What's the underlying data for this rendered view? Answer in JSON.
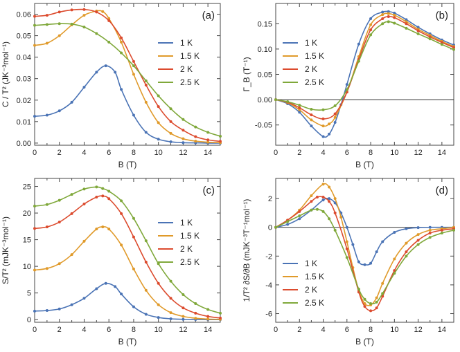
{
  "colors": {
    "1 K": "#4a73b5",
    "1.5 K": "#e09a2a",
    "2 K": "#dc4b2e",
    "2.5 K": "#7fa83a"
  },
  "chart_data": [
    {
      "type": "line",
      "id": "a",
      "panel_label": "(a)",
      "xlabel": "B (T)",
      "ylabel": "C / T² (JK⁻³mol⁻¹)",
      "xlim": [
        0,
        15
      ],
      "ylim": [
        -0.001,
        0.065
      ],
      "xticks": [
        0,
        2,
        4,
        6,
        8,
        10,
        12,
        14
      ],
      "yticks": [
        0.0,
        0.01,
        0.02,
        0.03,
        0.04,
        0.05,
        0.06
      ],
      "ytick_labels": [
        "0.00",
        "0.01",
        "0.02",
        "0.03",
        "0.04",
        "0.05",
        "0.06"
      ],
      "zero_line": false,
      "legend": [
        "1 K",
        "1.5 K",
        "2 K",
        "2.5 K"
      ],
      "series": [
        {
          "name": "1 K",
          "x": [
            0,
            1,
            2,
            3,
            4,
            5,
            5.75,
            6.5,
            7,
            8,
            9,
            10,
            11,
            12,
            13,
            14,
            15
          ],
          "values": [
            0.0125,
            0.013,
            0.015,
            0.019,
            0.026,
            0.033,
            0.036,
            0.033,
            0.025,
            0.013,
            0.005,
            0.0018,
            0.0006,
            0.0002,
            0.0001,
            0,
            0
          ]
        },
        {
          "name": "1.5 K",
          "x": [
            0,
            1,
            2,
            3,
            4,
            5,
            5.5,
            6,
            7,
            8,
            9,
            10,
            11,
            12,
            13,
            14,
            15
          ],
          "values": [
            0.0455,
            0.0465,
            0.05,
            0.055,
            0.0595,
            0.0615,
            0.0612,
            0.058,
            0.047,
            0.032,
            0.019,
            0.0095,
            0.0045,
            0.002,
            0.0009,
            0.0004,
            0.0002
          ]
        },
        {
          "name": "2 K",
          "x": [
            0,
            1,
            2,
            3,
            4,
            5,
            6,
            7,
            8,
            9,
            10,
            11,
            12,
            13,
            14,
            15
          ],
          "values": [
            0.059,
            0.0595,
            0.061,
            0.062,
            0.0622,
            0.061,
            0.057,
            0.049,
            0.038,
            0.027,
            0.017,
            0.01,
            0.006,
            0.003,
            0.0015,
            0.0008
          ]
        },
        {
          "name": "2.5 K",
          "x": [
            0,
            1,
            2,
            3,
            4,
            5,
            6,
            7,
            8,
            9,
            10,
            11,
            12,
            13,
            14,
            15
          ],
          "values": [
            0.0548,
            0.0552,
            0.0556,
            0.0554,
            0.054,
            0.051,
            0.047,
            0.042,
            0.036,
            0.029,
            0.022,
            0.016,
            0.011,
            0.0075,
            0.005,
            0.0032
          ]
        }
      ]
    },
    {
      "type": "line",
      "id": "b",
      "panel_label": "(b)",
      "xlabel": "B (T)",
      "ylabel": "Γ_B (T⁻¹)",
      "xlim": [
        0,
        15
      ],
      "ylim": [
        -0.09,
        0.19
      ],
      "xticks": [
        0,
        2,
        4,
        6,
        8,
        10,
        12,
        14
      ],
      "yticks": [
        -0.05,
        0.0,
        0.05,
        0.1,
        0.15
      ],
      "ytick_labels": [
        "-0.05",
        "0.00",
        "0.05",
        "0.10",
        "0.15"
      ],
      "zero_line": true,
      "legend": [
        "1 K",
        "1.5 K",
        "2 K",
        "2.5 K"
      ],
      "series": [
        {
          "name": "1 K",
          "x": [
            0,
            1,
            2,
            3,
            4,
            4.5,
            5,
            5.5,
            6,
            7,
            8,
            9,
            9.5,
            10,
            11,
            12,
            13,
            14,
            15
          ],
          "values": [
            0,
            -0.008,
            -0.025,
            -0.052,
            -0.073,
            -0.068,
            -0.045,
            -0.01,
            0.03,
            0.11,
            0.16,
            0.173,
            0.174,
            0.171,
            0.158,
            0.143,
            0.13,
            0.118,
            0.108
          ]
        },
        {
          "name": "1.5 K",
          "x": [
            0,
            1,
            2,
            3,
            4,
            4.5,
            5,
            6,
            7,
            8,
            9,
            9.5,
            10,
            11,
            12,
            13,
            14,
            15
          ],
          "values": [
            0,
            -0.006,
            -0.02,
            -0.04,
            -0.052,
            -0.048,
            -0.035,
            0.015,
            0.085,
            0.148,
            0.168,
            0.17,
            0.167,
            0.154,
            0.139,
            0.127,
            0.115,
            0.105
          ]
        },
        {
          "name": "2 K",
          "x": [
            0,
            1,
            2,
            3,
            4,
            5,
            6,
            7,
            8,
            9,
            9.5,
            10,
            11,
            12,
            13,
            14,
            15
          ],
          "values": [
            0,
            -0.005,
            -0.016,
            -0.03,
            -0.038,
            -0.028,
            0.015,
            0.08,
            0.138,
            0.16,
            0.164,
            0.162,
            0.15,
            0.136,
            0.124,
            0.113,
            0.103
          ]
        },
        {
          "name": "2.5 K",
          "x": [
            0,
            1,
            2,
            3,
            4,
            5,
            6,
            7,
            8,
            9,
            9.5,
            10,
            11,
            12,
            13,
            14,
            15
          ],
          "values": [
            0,
            -0.004,
            -0.011,
            -0.019,
            -0.02,
            -0.012,
            0.02,
            0.076,
            0.128,
            0.15,
            0.154,
            0.151,
            0.141,
            0.13,
            0.12,
            0.109,
            0.099
          ]
        }
      ]
    },
    {
      "type": "line",
      "id": "c",
      "panel_label": "(c)",
      "xlabel": "B (T)",
      "ylabel": "S/T² (mJK⁻³mol⁻¹)",
      "xlim": [
        0,
        15
      ],
      "ylim": [
        -0.5,
        26.5
      ],
      "xticks": [
        0,
        2,
        4,
        6,
        8,
        10,
        12,
        14
      ],
      "yticks": [
        0,
        5,
        10,
        15,
        20,
        25
      ],
      "ytick_labels": [
        "0",
        "5",
        "10",
        "15",
        "20",
        "25"
      ],
      "zero_line": false,
      "legend": [
        "1 K",
        "1.5 K",
        "2 K",
        "2.5 K"
      ],
      "series": [
        {
          "name": "1 K",
          "x": [
            0,
            1,
            2,
            3,
            4,
            5,
            5.75,
            6.5,
            7,
            8,
            9,
            10,
            11,
            12,
            13,
            14,
            15
          ],
          "values": [
            1.6,
            1.7,
            2.0,
            2.8,
            4.0,
            5.8,
            6.8,
            6.2,
            4.8,
            2.4,
            1.0,
            0.4,
            0.15,
            0.05,
            0.02,
            0,
            0
          ]
        },
        {
          "name": "1.5 K",
          "x": [
            0,
            1,
            2,
            3,
            4,
            5,
            5.5,
            6,
            7,
            8,
            9,
            10,
            11,
            12,
            13,
            14,
            15
          ],
          "values": [
            9.3,
            9.6,
            10.5,
            12.2,
            14.7,
            17.0,
            17.4,
            17.0,
            14.0,
            9.5,
            5.5,
            2.8,
            1.3,
            0.6,
            0.25,
            0.1,
            0.05
          ]
        },
        {
          "name": "2 K",
          "x": [
            0,
            1,
            2,
            3,
            4,
            5,
            5.5,
            6,
            7,
            8,
            9,
            10,
            11,
            12,
            13,
            14,
            15
          ],
          "values": [
            17.1,
            17.4,
            18.3,
            19.9,
            21.7,
            23.0,
            23.2,
            22.7,
            19.9,
            15.5,
            10.8,
            6.8,
            4.0,
            2.2,
            1.2,
            0.6,
            0.3
          ]
        },
        {
          "name": "2.5 K",
          "x": [
            0,
            1,
            2,
            3,
            4,
            5,
            5.5,
            6,
            7,
            8,
            9,
            10,
            11,
            12,
            13,
            14,
            15
          ],
          "values": [
            21.3,
            21.6,
            22.4,
            23.5,
            24.5,
            24.9,
            24.6,
            24.1,
            22.3,
            19.0,
            14.8,
            10.5,
            7.2,
            4.7,
            3.0,
            1.9,
            1.2
          ]
        }
      ]
    },
    {
      "type": "line",
      "id": "d",
      "panel_label": "(d)",
      "xlabel": "B (T)",
      "ylabel": "1/T² ∂S/∂B (mJK⁻³T⁻¹mol⁻¹)",
      "xlim": [
        0,
        15
      ],
      "ylim": [
        -6.6,
        3.4
      ],
      "xticks": [
        0,
        2,
        4,
        6,
        8,
        10,
        12,
        14
      ],
      "yticks": [
        -6,
        -4,
        -2,
        0,
        2
      ],
      "ytick_labels": [
        "-6",
        "-4",
        "-2",
        "0",
        "2"
      ],
      "zero_line": true,
      "legend": [
        "1 K",
        "1.5 K",
        "2 K",
        "2.5 K"
      ],
      "series": [
        {
          "name": "1 K",
          "x": [
            0,
            1,
            2,
            3,
            4,
            4.5,
            5,
            5.5,
            6,
            6.5,
            7,
            7.5,
            8,
            8.5,
            9,
            10,
            11,
            12,
            13,
            14,
            15
          ],
          "values": [
            0,
            0.2,
            0.6,
            1.2,
            1.9,
            2.0,
            1.7,
            1.0,
            0.0,
            -1.2,
            -2.4,
            -2.6,
            -2.5,
            -1.7,
            -1.0,
            -0.35,
            -0.1,
            -0.02,
            0,
            0,
            0
          ]
        },
        {
          "name": "1.5 K",
          "x": [
            0,
            1,
            2,
            3,
            4,
            4.5,
            5,
            5.5,
            6,
            6.5,
            7,
            7.5,
            8,
            8.5,
            9,
            10,
            11,
            12,
            13,
            14,
            15
          ],
          "values": [
            0,
            0.5,
            1.2,
            2.2,
            3.0,
            2.8,
            2.0,
            0.7,
            -1.0,
            -2.8,
            -4.4,
            -5.3,
            -5.4,
            -4.9,
            -3.9,
            -2.2,
            -1.1,
            -0.5,
            -0.2,
            -0.1,
            0
          ]
        },
        {
          "name": "2 K",
          "x": [
            0,
            1,
            2,
            3,
            3.5,
            4,
            4.5,
            5,
            6,
            7,
            7.5,
            8,
            8.5,
            9,
            10,
            11,
            12,
            13,
            14,
            15
          ],
          "values": [
            0,
            0.5,
            1.1,
            1.8,
            2.1,
            2.1,
            1.8,
            1.0,
            -1.5,
            -4.5,
            -5.5,
            -5.8,
            -5.6,
            -4.8,
            -3.0,
            -1.7,
            -0.9,
            -0.4,
            -0.2,
            -0.1
          ]
        },
        {
          "name": "2.5 K",
          "x": [
            0,
            1,
            2,
            3,
            3.5,
            4,
            4.5,
            5,
            6,
            7,
            7.5,
            8,
            8.5,
            9,
            10,
            11,
            12,
            13,
            14,
            15
          ],
          "values": [
            0,
            0.4,
            0.8,
            1.2,
            1.25,
            1.1,
            0.6,
            -0.2,
            -2.1,
            -4.3,
            -5.0,
            -5.3,
            -5.2,
            -4.6,
            -3.2,
            -2.0,
            -1.2,
            -0.7,
            -0.4,
            -0.2
          ]
        }
      ]
    }
  ]
}
